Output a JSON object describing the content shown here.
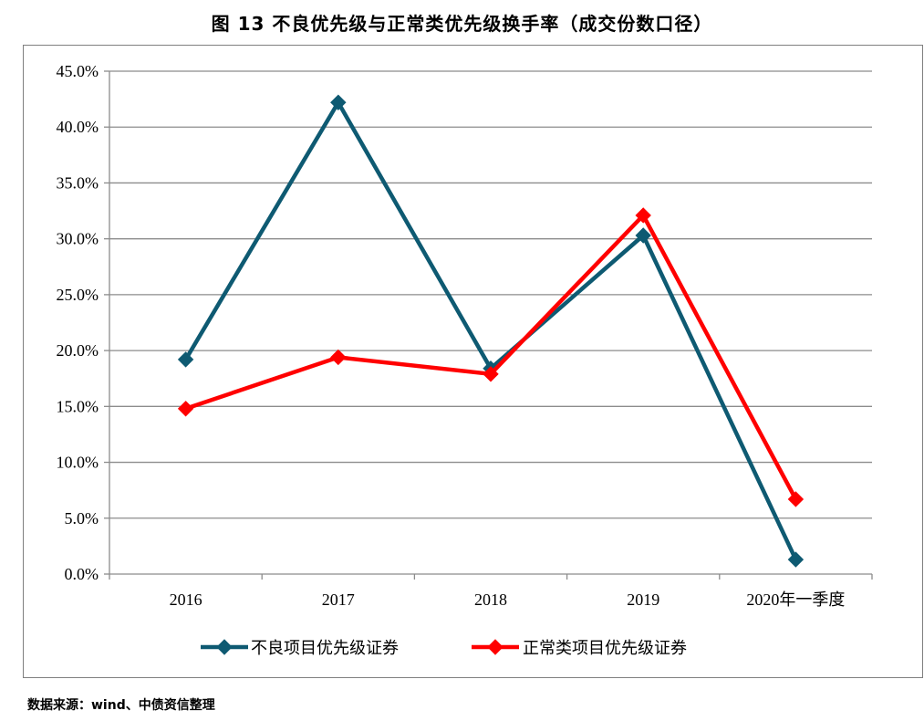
{
  "title": "图 13  不良优先级与正常类优先级换手率（成交份数口径）",
  "source": "数据来源：wind、中债资信整理",
  "chart_data": {
    "type": "line",
    "title": "图 13  不良优先级与正常类优先级换手率（成交份数口径）",
    "xlabel": "",
    "ylabel": "",
    "categories": [
      "2016",
      "2017",
      "2018",
      "2019",
      "2020年一季度"
    ],
    "ylim": [
      0,
      45
    ],
    "yticks": [
      "0.0%",
      "5.0%",
      "10.0%",
      "15.0%",
      "20.0%",
      "25.0%",
      "30.0%",
      "35.0%",
      "40.0%",
      "45.0%"
    ],
    "grid": true,
    "legend_position": "bottom",
    "series": [
      {
        "name": "不良项目优先级证券",
        "color": "#0e5a72",
        "marker": "diamond",
        "values": [
          19.2,
          42.2,
          18.4,
          30.3,
          1.3
        ]
      },
      {
        "name": "正常类项目优先级证券",
        "color": "#ff0000",
        "marker": "diamond",
        "values": [
          14.8,
          19.4,
          17.9,
          32.1,
          6.7
        ]
      }
    ]
  }
}
